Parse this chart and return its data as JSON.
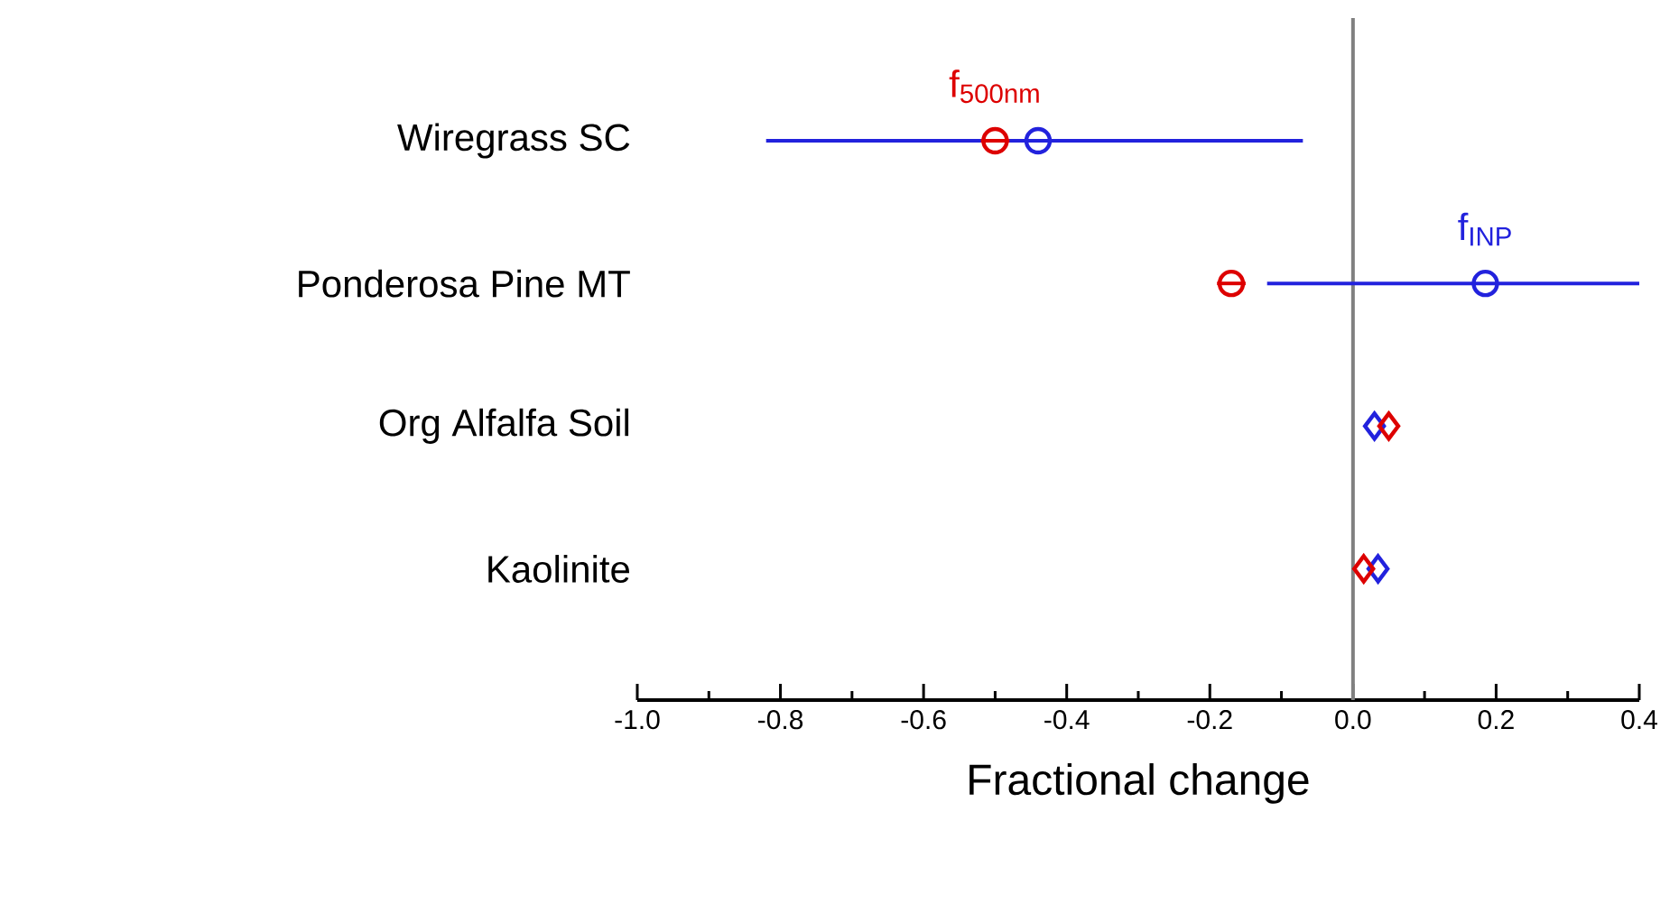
{
  "chart_data": {
    "type": "scatter",
    "orientation": "horizontal",
    "xlabel": "Fractional change",
    "categories": [
      "Wiregrass SC",
      "Ponderosa Pine MT",
      "Org Alfalfa Soil",
      "Kaolinite"
    ],
    "xlim": [
      -1.0,
      0.4
    ],
    "xticks": [
      {
        "value": -1.0,
        "label": "-1.0"
      },
      {
        "value": -0.9,
        "label": null
      },
      {
        "value": -0.8,
        "label": "-0.8"
      },
      {
        "value": -0.7,
        "label": null
      },
      {
        "value": -0.6,
        "label": "-0.6"
      },
      {
        "value": -0.5,
        "label": null
      },
      {
        "value": -0.4,
        "label": "-0.4"
      },
      {
        "value": -0.3,
        "label": null
      },
      {
        "value": -0.2,
        "label": "-0.2"
      },
      {
        "value": -0.1,
        "label": null
      },
      {
        "value": 0.0,
        "label": "0.0"
      },
      {
        "value": 0.1,
        "label": null
      },
      {
        "value": 0.2,
        "label": "0.2"
      },
      {
        "value": 0.3,
        "label": null
      },
      {
        "value": 0.4,
        "label": "0.4"
      }
    ],
    "ref_lines": [
      {
        "axis": "x",
        "value": 0,
        "color": "#808080"
      }
    ],
    "grid": false,
    "series": [
      {
        "name": "f$_{500nm}$",
        "color": "#dd0000",
        "marker": "circle",
        "values": [
          -0.5,
          -0.17,
          null,
          null
        ],
        "errors": [
          0.02,
          0.02,
          null,
          null
        ]
      },
      {
        "name": "f$_{INP}$",
        "color": "#2222dd",
        "marker": "circle",
        "values": [
          -0.44,
          0.185,
          null,
          null
        ],
        "errors": [
          [
            -0.82,
            -0.07
          ],
          [
            -0.12,
            0.4
          ],
          null,
          null
        ]
      },
      {
        "color": "#dd0000",
        "marker": "diamond",
        "values": [
          null,
          null,
          0.05,
          0.015
        ]
      },
      {
        "color": "#2222dd",
        "marker": "diamond",
        "values": [
          null,
          null,
          0.03,
          0.035
        ]
      }
    ]
  }
}
